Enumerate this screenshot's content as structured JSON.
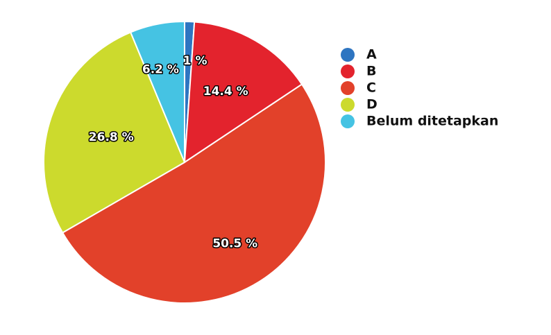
{
  "chart_data": {
    "type": "pie",
    "categories": [
      "A",
      "B",
      "C",
      "D",
      "Belum ditetapkan"
    ],
    "values": [
      1.1,
      14.4,
      50.5,
      26.8,
      6.2
    ],
    "data_labels": [
      "1 %",
      "14.4 %",
      "50.5 %",
      "26.8 %",
      "6.2 %"
    ],
    "colors": [
      "#2e75c1",
      "#e3232d",
      "#e2412a",
      "#ccda2d",
      "#45c3e3"
    ],
    "title": "",
    "legend_position": "right",
    "start_angle_deg": 0,
    "direction": "clockwise"
  }
}
